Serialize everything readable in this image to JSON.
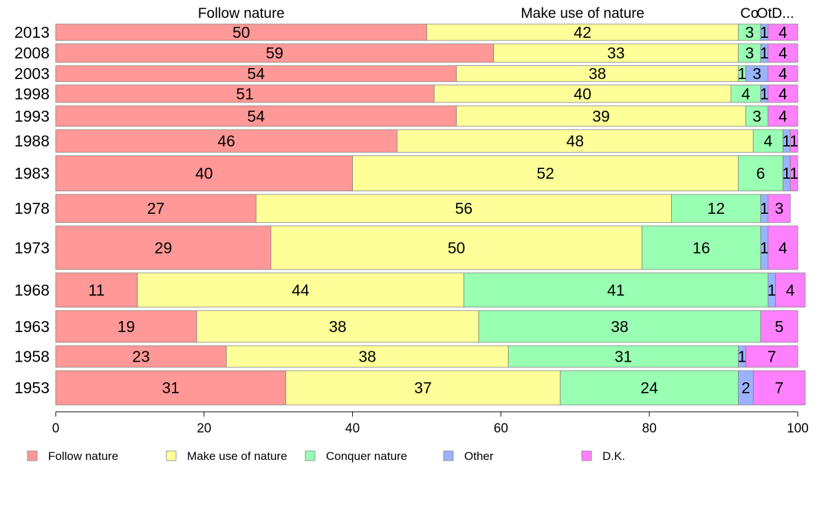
{
  "chart_data": {
    "type": "bar",
    "orientation": "horizontal",
    "stacked": true,
    "variable_bar_height": true,
    "categories": [
      "2013",
      "2008",
      "2003",
      "1998",
      "1993",
      "1988",
      "1983",
      "1978",
      "1973",
      "1968",
      "1963",
      "1958",
      "1953"
    ],
    "top_labels": [
      "Follow nature",
      "Make use of nature",
      "Co",
      "Ot",
      "D..."
    ],
    "series": [
      {
        "name": "Follow nature",
        "color": "#ff9896",
        "values": [
          50,
          59,
          54,
          51,
          54,
          46,
          40,
          27,
          29,
          11,
          19,
          23,
          31
        ],
        "value_labels": [
          "50",
          "59",
          "54",
          "51",
          "54",
          "46",
          "40",
          "27",
          "29",
          "11",
          "19",
          "23",
          "31"
        ]
      },
      {
        "name": "Make use of nature",
        "color": "#ffff99",
        "values": [
          42,
          33,
          38,
          40,
          39,
          48,
          52,
          56,
          50,
          44,
          38,
          38,
          37
        ],
        "value_labels": [
          "42",
          "33",
          "38",
          "40",
          "39",
          "48",
          "52",
          "56",
          "50",
          "44",
          "38",
          "38",
          "37"
        ]
      },
      {
        "name": "Conquer nature",
        "color": "#99ffb3",
        "values": [
          3,
          3,
          1,
          4,
          3,
          4,
          6,
          12,
          16,
          41,
          38,
          31,
          24
        ],
        "value_labels": [
          "3",
          "3",
          "1",
          "4",
          "3",
          "4",
          "6",
          "12",
          "16",
          "41",
          "38",
          "31",
          "24"
        ]
      },
      {
        "name": "Other",
        "color": "#99b3ff",
        "values": [
          1,
          1,
          3,
          1,
          0,
          1,
          1,
          1,
          1,
          1,
          0,
          1,
          2
        ],
        "value_labels": [
          "1",
          "1",
          "3",
          "1",
          "",
          "1",
          "1",
          "1",
          "1",
          "1",
          "",
          "1",
          "2"
        ]
      },
      {
        "name": "D.K.",
        "color": "#ff80ff",
        "values": [
          4,
          4,
          4,
          4,
          4,
          1,
          1,
          3,
          4,
          4,
          5,
          7,
          7
        ],
        "value_labels": [
          "4",
          "4",
          "4",
          "4",
          "4",
          "1",
          "1",
          "3",
          "4",
          "4",
          "5",
          "7",
          "7"
        ]
      }
    ],
    "relative_bar_sizes": [
      3.2,
      3.6,
      3.1,
      3.4,
      4.0,
      4.4,
      6.9,
      5.5,
      8.5,
      6.7,
      6.2,
      4.2,
      6.7
    ],
    "xlim": [
      0,
      100
    ],
    "xticks": [
      "0",
      "20",
      "40",
      "60",
      "80",
      "100"
    ],
    "grid": false,
    "legend_position": "bottom"
  }
}
